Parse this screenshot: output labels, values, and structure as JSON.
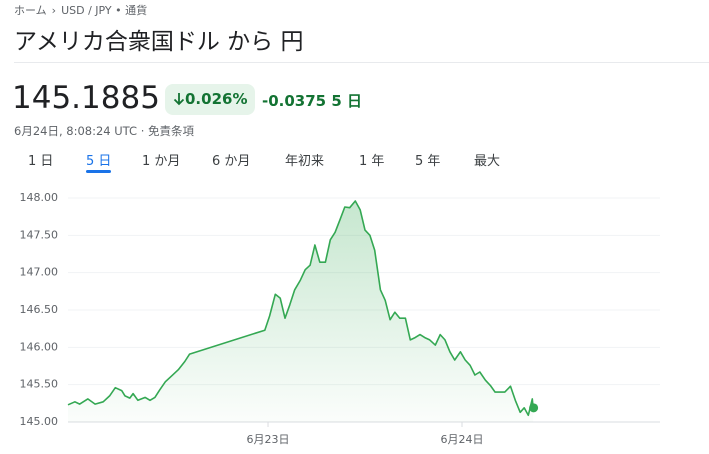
{
  "breadcrumb": [
    "ホーム",
    "USD / JPY • 通貨"
  ],
  "title": "アメリカ合衆国ドル から 円",
  "price": "145.1885",
  "change_percent": "0.026%",
  "change": "-0.0375",
  "change_period": "5 日",
  "timestamp": "6月24日, 8:08:24 UTC",
  "disclaimer": "免責条項",
  "tabs": [
    "1 日",
    "5 日",
    "1 か月",
    "6 か月",
    "年初来",
    "1 年",
    "5 年",
    "最大"
  ],
  "chart_data": {
    "type": "line",
    "color": "#34a853",
    "x": [
      -24.75,
      -23.9,
      -23.3,
      -22.3,
      -21.4,
      -20.4,
      -19.6,
      -18.9,
      -18.1,
      -17.7,
      -17.1,
      -16.7,
      -16.1,
      -15.2,
      -14.6,
      -14.0,
      -13.4,
      -12.7,
      -11.9,
      -11.1,
      -10.3,
      -9.7,
      -0.4,
      0.2,
      0.9,
      1.5,
      2.1,
      2.7,
      3.3,
      4.0,
      4.6,
      5.2,
      5.8,
      6.4,
      7.1,
      7.7,
      8.3,
      8.9,
      9.5,
      10.1,
      10.8,
      11.4,
      12.0,
      12.6,
      13.2,
      13.9,
      14.5,
      15.1,
      15.7,
      16.3,
      17.0,
      17.6,
      18.2,
      18.8,
      19.4,
      20.0,
      20.7,
      21.3,
      21.9,
      22.5,
      23.1,
      23.8,
      24.4,
      25.0,
      25.6,
      26.2,
      26.9,
      27.5,
      28.1,
      28.7,
      29.3,
      30.0,
      30.6,
      31.2,
      31.7,
      32.2,
      32.7,
      32.8
    ],
    "values": [
      145.23,
      145.27,
      145.24,
      145.31,
      145.24,
      145.27,
      145.35,
      145.46,
      145.42,
      145.35,
      145.32,
      145.38,
      145.29,
      145.33,
      145.29,
      145.33,
      145.43,
      145.54,
      145.62,
      145.7,
      145.81,
      145.91,
      146.23,
      146.42,
      146.71,
      146.66,
      146.39,
      146.57,
      146.77,
      146.9,
      147.04,
      147.1,
      147.37,
      147.14,
      147.14,
      147.44,
      147.54,
      147.71,
      147.88,
      147.87,
      147.96,
      147.84,
      147.57,
      147.5,
      147.3,
      146.77,
      146.63,
      146.37,
      146.47,
      146.39,
      146.39,
      146.1,
      146.13,
      146.17,
      146.13,
      146.1,
      146.03,
      146.17,
      146.1,
      145.94,
      145.83,
      145.94,
      145.83,
      145.76,
      145.63,
      145.67,
      145.56,
      145.49,
      145.4,
      145.4,
      145.4,
      145.48,
      145.29,
      145.13,
      145.19,
      145.09,
      145.31,
      145.19
    ],
    "xlim": [
      -24.75,
      48.5
    ],
    "xticks": [
      {
        "value": 0,
        "label": "6月23日"
      },
      {
        "value": 24,
        "label": "6月24日"
      }
    ],
    "ylim": [
      145,
      148
    ],
    "yticks": [
      {
        "value": 145,
        "label": "145.00"
      },
      {
        "value": 145.5,
        "label": "145.50"
      },
      {
        "value": 146,
        "label": "146.00"
      },
      {
        "value": 146.5,
        "label": "146.50"
      },
      {
        "value": 147,
        "label": "147.00"
      },
      {
        "value": 147.5,
        "label": "147.50"
      },
      {
        "value": 148,
        "label": "148.00"
      }
    ],
    "grid": true
  }
}
